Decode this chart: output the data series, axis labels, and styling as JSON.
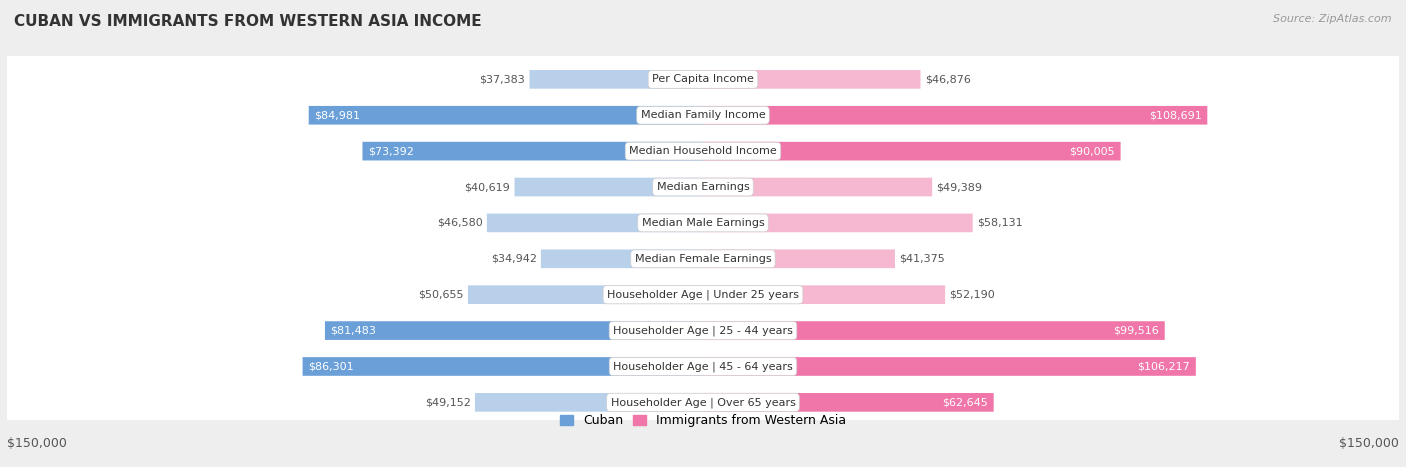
{
  "title": "CUBAN VS IMMIGRANTS FROM WESTERN ASIA INCOME",
  "source": "Source: ZipAtlas.com",
  "categories": [
    "Per Capita Income",
    "Median Family Income",
    "Median Household Income",
    "Median Earnings",
    "Median Male Earnings",
    "Median Female Earnings",
    "Householder Age | Under 25 years",
    "Householder Age | 25 - 44 years",
    "Householder Age | 45 - 64 years",
    "Householder Age | Over 65 years"
  ],
  "cuban_values": [
    37383,
    84981,
    73392,
    40619,
    46580,
    34942,
    50655,
    81483,
    86301,
    49152
  ],
  "western_asia_values": [
    46876,
    108691,
    90005,
    49389,
    58131,
    41375,
    52190,
    99516,
    106217,
    62645
  ],
  "cuban_labels": [
    "$37,383",
    "$84,981",
    "$73,392",
    "$40,619",
    "$46,580",
    "$34,942",
    "$50,655",
    "$81,483",
    "$86,301",
    "$49,152"
  ],
  "western_asia_labels": [
    "$46,876",
    "$108,691",
    "$90,005",
    "$49,389",
    "$58,131",
    "$41,375",
    "$52,190",
    "$99,516",
    "$106,217",
    "$62,645"
  ],
  "cuban_color_strong": "#6a9fd8",
  "cuban_color_light": "#b8d0ea",
  "western_asia_color_strong": "#f075a8",
  "western_asia_color_light": "#f5b8d0",
  "cuban_large_threshold": 60000,
  "wa_large_threshold": 60000,
  "max_value": 150000,
  "xlabel_left": "$150,000",
  "xlabel_right": "$150,000",
  "legend_cuban": "Cuban",
  "legend_western_asia": "Immigrants from Western Asia",
  "background_color": "#eeeeee",
  "row_bg_color": "#ffffff",
  "row_border_color": "#cccccc",
  "title_fontsize": 11,
  "source_fontsize": 8,
  "label_fontsize": 8,
  "category_fontsize": 8,
  "axis_label_fontsize": 9
}
